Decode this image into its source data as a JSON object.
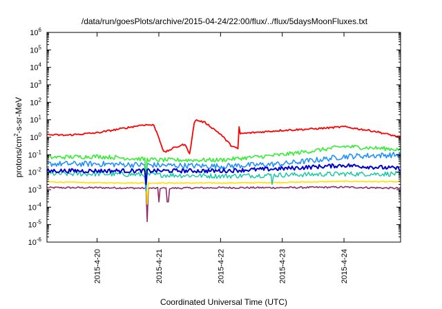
{
  "chart_data": {
    "type": "line",
    "title": "/data/run/goesPlots/archive/2015-04-24/22:00/flux/../flux/5daysMoonFluxes.txt",
    "xlabel": "Coordinated Universal Time (UTC)",
    "ylabel": "protons/cm²-s-sr-MeV",
    "ylabel_parts": {
      "pre": "protons/cm",
      "sup": "2",
      "post": "-s-sr-MeV"
    },
    "y_scale": "log",
    "ylim": [
      1e-06,
      1000000.0
    ],
    "y_ticks": [
      {
        "value": 1e-06,
        "base": "10",
        "exp": "-6"
      },
      {
        "value": 1e-05,
        "base": "10",
        "exp": "-5"
      },
      {
        "value": 0.0001,
        "base": "10",
        "exp": "-4"
      },
      {
        "value": 0.001,
        "base": "10",
        "exp": "-3"
      },
      {
        "value": 0.01,
        "base": "10",
        "exp": "-2"
      },
      {
        "value": 0.1,
        "base": "10",
        "exp": "-1"
      },
      {
        "value": 1,
        "base": "10",
        "exp": "0"
      },
      {
        "value": 10,
        "base": "10",
        "exp": "1"
      },
      {
        "value": 100,
        "base": "10",
        "exp": "2"
      },
      {
        "value": 1000,
        "base": "10",
        "exp": "3"
      },
      {
        "value": 10000,
        "base": "10",
        "exp": "4"
      },
      {
        "value": 100000,
        "base": "10",
        "exp": "5"
      },
      {
        "value": 1000000,
        "base": "10",
        "exp": "6"
      }
    ],
    "xlim": [
      "2015-04-19 04:30",
      "2015-04-24 22:00"
    ],
    "x_ticks": [
      {
        "value": "2015-04-20 00:00",
        "label": "2015-4-20"
      },
      {
        "value": "2015-04-21 00:00",
        "label": "2015-4-21"
      },
      {
        "value": "2015-04-22 00:00",
        "label": "2015-4-22"
      },
      {
        "value": "2015-04-23 00:00",
        "label": "2015-4-23"
      },
      {
        "value": "2015-04-24 00:00",
        "label": "2015-4-24"
      }
    ],
    "grid": false,
    "legend": "none",
    "series": [
      {
        "color": "#8e2a6a",
        "noise": 0.05,
        "width": 1.6,
        "points": [
          [
            "2015-04-19 04:30",
            0.0013
          ],
          [
            "2015-04-20 00:00",
            0.0013
          ],
          [
            "2015-04-21 00:00",
            0.0012
          ],
          [
            "2015-04-22 00:00",
            0.0013
          ],
          [
            "2015-04-23 00:00",
            0.0013
          ],
          [
            "2015-04-24 00:00",
            0.0014
          ],
          [
            "2015-04-24 22:00",
            0.0012
          ]
        ],
        "dips": [
          [
            "2015-04-20 19:30",
            1.5e-05
          ],
          [
            "2015-04-21 00:00",
            0.0002
          ],
          [
            "2015-04-21 03:30",
            0.0002
          ]
        ]
      },
      {
        "color": "#ffe000",
        "noise": 0.03,
        "width": 1.6,
        "points": [
          [
            "2015-04-19 04:30",
            0.0028
          ],
          [
            "2015-04-20 00:00",
            0.0025
          ],
          [
            "2015-04-21 00:00",
            0.0024
          ],
          [
            "2015-04-22 00:00",
            0.0024
          ],
          [
            "2015-04-23 00:00",
            0.0026
          ],
          [
            "2015-04-24 00:00",
            0.003
          ],
          [
            "2015-04-24 22:00",
            0.0028
          ]
        ],
        "dips": [
          [
            "2015-04-20 19:30",
            0.00015
          ]
        ]
      },
      {
        "color": "#10c8a0",
        "noise": 0.14,
        "width": 1.4,
        "points": [
          [
            "2015-04-19 04:30",
            0.008
          ],
          [
            "2015-04-20 00:00",
            0.008
          ],
          [
            "2015-04-21 00:00",
            0.007
          ],
          [
            "2015-04-22 00:00",
            0.006
          ],
          [
            "2015-04-23 00:00",
            0.007
          ],
          [
            "2015-04-24 00:00",
            0.008
          ],
          [
            "2015-04-24 22:00",
            0.008
          ]
        ],
        "dips": [
          [
            "2015-04-20 19:00",
            0.0008
          ],
          [
            "2015-04-22 20:00",
            0.002
          ]
        ]
      },
      {
        "color": "#1e90ff",
        "noise": 0.16,
        "width": 1.6,
        "points": [
          [
            "2015-04-19 04:30",
            0.03
          ],
          [
            "2015-04-20 00:00",
            0.03
          ],
          [
            "2015-04-21 00:00",
            0.025
          ],
          [
            "2015-04-22 00:00",
            0.022
          ],
          [
            "2015-04-23 00:00",
            0.03
          ],
          [
            "2015-04-23 18:00",
            0.06
          ],
          [
            "2015-04-24 00:00",
            0.08
          ],
          [
            "2015-04-24 22:00",
            0.1
          ]
        ],
        "dips": [
          [
            "2015-04-20 19:00",
            0.001
          ]
        ]
      },
      {
        "color": "#33ee33",
        "noise": 0.12,
        "width": 1.6,
        "points": [
          [
            "2015-04-19 04:30",
            0.07
          ],
          [
            "2015-04-20 00:00",
            0.08
          ],
          [
            "2015-04-21 00:00",
            0.05
          ],
          [
            "2015-04-22 00:00",
            0.05
          ],
          [
            "2015-04-23 00:00",
            0.1
          ],
          [
            "2015-04-23 16:00",
            0.2
          ],
          [
            "2015-04-24 00:00",
            0.3
          ],
          [
            "2015-04-24 22:00",
            0.2
          ]
        ],
        "dips": [
          [
            "2015-04-20 19:00",
            0.004
          ]
        ]
      },
      {
        "color": "#0000cc",
        "noise": 0.12,
        "width": 2.0,
        "points": [
          [
            "2015-04-19 04:30",
            0.012
          ],
          [
            "2015-04-20 00:00",
            0.012
          ],
          [
            "2015-04-21 00:00",
            0.012
          ],
          [
            "2015-04-22 00:00",
            0.012
          ],
          [
            "2015-04-23 00:00",
            0.016
          ],
          [
            "2015-04-24 00:00",
            0.025
          ],
          [
            "2015-04-24 22:00",
            0.016
          ]
        ],
        "dips": [
          [
            "2015-04-20 19:00",
            0.002
          ]
        ]
      },
      {
        "color": "#ff0000",
        "noise": 0.05,
        "width": 1.8,
        "points": [
          [
            "2015-04-19 04:30",
            1.4
          ],
          [
            "2015-04-19 12:00",
            1.3
          ],
          [
            "2015-04-20 00:00",
            1.8
          ],
          [
            "2015-04-20 10:00",
            3.2
          ],
          [
            "2015-04-20 18:00",
            5.2
          ],
          [
            "2015-04-20 22:00",
            5.0
          ],
          [
            "2015-04-21 00:00",
            1.0
          ],
          [
            "2015-04-21 02:00",
            0.13
          ],
          [
            "2015-04-21 06:00",
            0.25
          ],
          [
            "2015-04-21 10:00",
            0.4
          ],
          [
            "2015-04-21 12:00",
            0.12
          ],
          [
            "2015-04-21 14:00",
            10
          ],
          [
            "2015-04-21 18:00",
            7
          ],
          [
            "2015-04-22 00:00",
            1.5
          ],
          [
            "2015-04-22 04:00",
            0.35
          ],
          [
            "2015-04-22 06:00",
            0.25
          ],
          [
            "2015-04-22 06:45",
            0.2
          ],
          [
            "2015-04-22 07:00",
            7
          ],
          [
            "2015-04-22 07:30",
            1.6
          ],
          [
            "2015-04-23 00:00",
            2.5
          ],
          [
            "2015-04-23 12:00",
            3.0
          ],
          [
            "2015-04-24 00:00",
            4.0
          ],
          [
            "2015-04-24 12:00",
            2.2
          ],
          [
            "2015-04-24 22:00",
            1.0
          ]
        ],
        "dips": []
      }
    ]
  }
}
